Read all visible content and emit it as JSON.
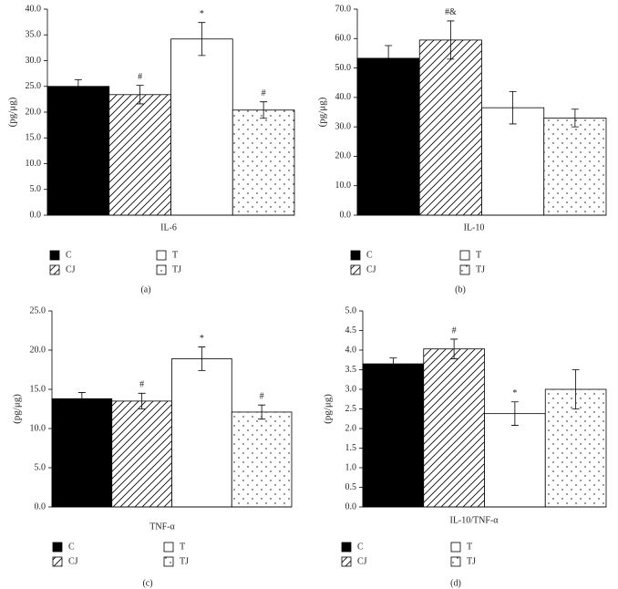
{
  "chart_data": [
    {
      "type": "bar",
      "caption": "(a)",
      "y_label": "(pg/μg)",
      "categories": [
        "IL-6"
      ],
      "ylim": [
        0,
        40
      ],
      "yticks": [
        {
          "value": 0,
          "label": "0.0"
        },
        {
          "value": 5,
          "label": "5.0"
        },
        {
          "value": 10,
          "label": "10.0"
        },
        {
          "value": 15,
          "label": "15.0"
        },
        {
          "value": 20,
          "label": "20.0"
        },
        {
          "value": 25,
          "label": "25.0"
        },
        {
          "value": 30,
          "label": "30.0"
        },
        {
          "value": 35,
          "label": "35.0"
        },
        {
          "value": 40,
          "label": "40.0"
        }
      ],
      "series": [
        {
          "name": "C",
          "pattern": "solid",
          "color": "#000000",
          "values": [
            25.0
          ],
          "errors": [
            1.3
          ]
        },
        {
          "name": "CJ",
          "pattern": "hatch",
          "color": "#000000",
          "values": [
            23.4
          ],
          "errors": [
            1.8
          ],
          "annotation": "#"
        },
        {
          "name": "T",
          "pattern": "none",
          "color": "#000000",
          "values": [
            34.2
          ],
          "errors": [
            3.2
          ],
          "annotation": "*"
        },
        {
          "name": "TJ",
          "pattern": "dots",
          "color": "#000000",
          "values": [
            20.4
          ],
          "errors": [
            1.6
          ],
          "annotation": "#"
        }
      ]
    },
    {
      "type": "bar",
      "caption": "(b)",
      "y_label": "(pg/μg)",
      "categories": [
        "IL-10"
      ],
      "ylim": [
        0,
        70
      ],
      "yticks": [
        {
          "value": 0,
          "label": "0.0"
        },
        {
          "value": 10,
          "label": "10.0"
        },
        {
          "value": 20,
          "label": "20.0"
        },
        {
          "value": 30,
          "label": "30.0"
        },
        {
          "value": 40,
          "label": "40.0"
        },
        {
          "value": 50,
          "label": "50.0"
        },
        {
          "value": 60,
          "label": "60.0"
        },
        {
          "value": 70,
          "label": "70.0"
        }
      ],
      "series": [
        {
          "name": "C",
          "pattern": "solid",
          "color": "#000000",
          "values": [
            53.3
          ],
          "errors": [
            4.3
          ]
        },
        {
          "name": "CJ",
          "pattern": "hatch",
          "color": "#000000",
          "values": [
            59.5
          ],
          "errors": [
            6.5
          ],
          "annotation": "#&"
        },
        {
          "name": "T",
          "pattern": "none",
          "color": "#000000",
          "values": [
            36.5
          ],
          "errors": [
            5.5
          ]
        },
        {
          "name": "TJ",
          "pattern": "dots",
          "color": "#000000",
          "values": [
            33.0
          ],
          "errors": [
            3.0
          ]
        }
      ]
    },
    {
      "type": "bar",
      "caption": "(c)",
      "y_label": "(pg/μg)",
      "categories": [
        "TNF-α"
      ],
      "ylim": [
        0,
        25
      ],
      "yticks": [
        {
          "value": 0,
          "label": "0.0"
        },
        {
          "value": 5,
          "label": "5.0"
        },
        {
          "value": 10,
          "label": "10.0"
        },
        {
          "value": 15,
          "label": "15.0"
        },
        {
          "value": 20,
          "label": "20.0"
        },
        {
          "value": 25,
          "label": "25.0"
        }
      ],
      "series": [
        {
          "name": "C",
          "pattern": "solid",
          "color": "#000000",
          "values": [
            13.8
          ],
          "errors": [
            0.8
          ]
        },
        {
          "name": "CJ",
          "pattern": "hatch",
          "color": "#000000",
          "values": [
            13.5
          ],
          "errors": [
            1.0
          ],
          "annotation": "#"
        },
        {
          "name": "T",
          "pattern": "none",
          "color": "#000000",
          "values": [
            18.9
          ],
          "errors": [
            1.5
          ],
          "annotation": "*"
        },
        {
          "name": "TJ",
          "pattern": "dots",
          "color": "#000000",
          "values": [
            12.1
          ],
          "errors": [
            0.9
          ],
          "annotation": "#"
        }
      ]
    },
    {
      "type": "bar",
      "caption": "(d)",
      "y_label": "(pg/μg)",
      "categories": [
        "IL-10/TNF-α"
      ],
      "ylim": [
        0,
        5
      ],
      "yticks": [
        {
          "value": 0,
          "label": "0.0"
        },
        {
          "value": 0.5,
          "label": "0.5"
        },
        {
          "value": 1,
          "label": "1.0"
        },
        {
          "value": 1.5,
          "label": "1.5"
        },
        {
          "value": 2,
          "label": "2.0"
        },
        {
          "value": 2.5,
          "label": "2.5"
        },
        {
          "value": 3,
          "label": "3.0"
        },
        {
          "value": 3.5,
          "label": "3.5"
        },
        {
          "value": 4,
          "label": "4.0"
        },
        {
          "value": 4.5,
          "label": "4.5"
        },
        {
          "value": 5,
          "label": "5.0"
        }
      ],
      "series": [
        {
          "name": "C",
          "pattern": "solid",
          "color": "#000000",
          "values": [
            3.65
          ],
          "errors": [
            0.15
          ]
        },
        {
          "name": "CJ",
          "pattern": "hatch",
          "color": "#000000",
          "values": [
            4.03
          ],
          "errors": [
            0.25
          ],
          "annotation": "#"
        },
        {
          "name": "T",
          "pattern": "none",
          "color": "#000000",
          "values": [
            2.38
          ],
          "errors": [
            0.3
          ],
          "annotation": "*"
        },
        {
          "name": "TJ",
          "pattern": "dots",
          "color": "#000000",
          "values": [
            3.0
          ],
          "errors": [
            0.5
          ]
        }
      ]
    }
  ]
}
